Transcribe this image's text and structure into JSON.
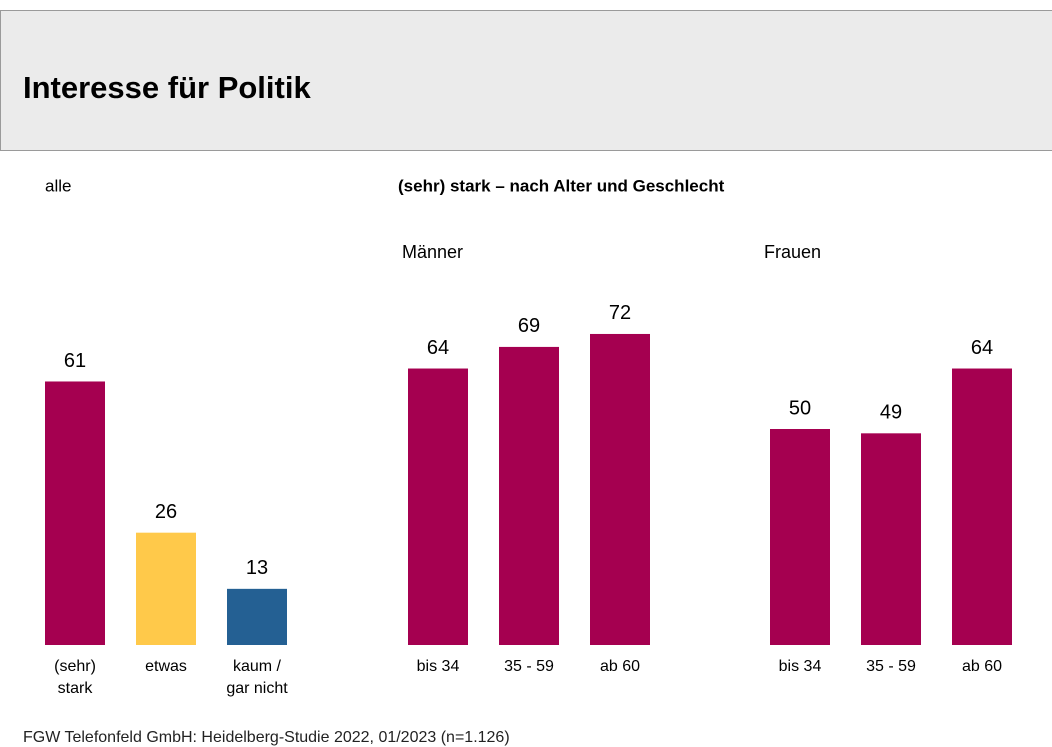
{
  "title": "Interesse für Politik",
  "subtitle": "(sehr) stark – nach Alter und Geschlecht",
  "footer": "FGW Telefonfeld GmbH: Heidelberg-Studie 2022, 01/2023 (n=1.126)",
  "chart_data": [
    {
      "type": "bar",
      "title": "alle",
      "categories": [
        "(sehr)\nstark",
        "etwas",
        "kaum /\ngar nicht"
      ],
      "values": [
        61,
        26,
        13
      ],
      "colors": [
        "#a50050",
        "#ffc94a",
        "#246093"
      ]
    },
    {
      "type": "bar",
      "title": "Männer",
      "categories": [
        "bis 34",
        "35 - 59",
        "ab 60"
      ],
      "values": [
        64,
        69,
        72
      ],
      "colors": [
        "#a50050",
        "#a50050",
        "#a50050"
      ]
    },
    {
      "type": "bar",
      "title": "Frauen",
      "categories": [
        "bis 34",
        "35 - 59",
        "ab 60"
      ],
      "values": [
        50,
        49,
        64
      ],
      "colors": [
        "#a50050",
        "#a50050",
        "#a50050"
      ]
    }
  ]
}
